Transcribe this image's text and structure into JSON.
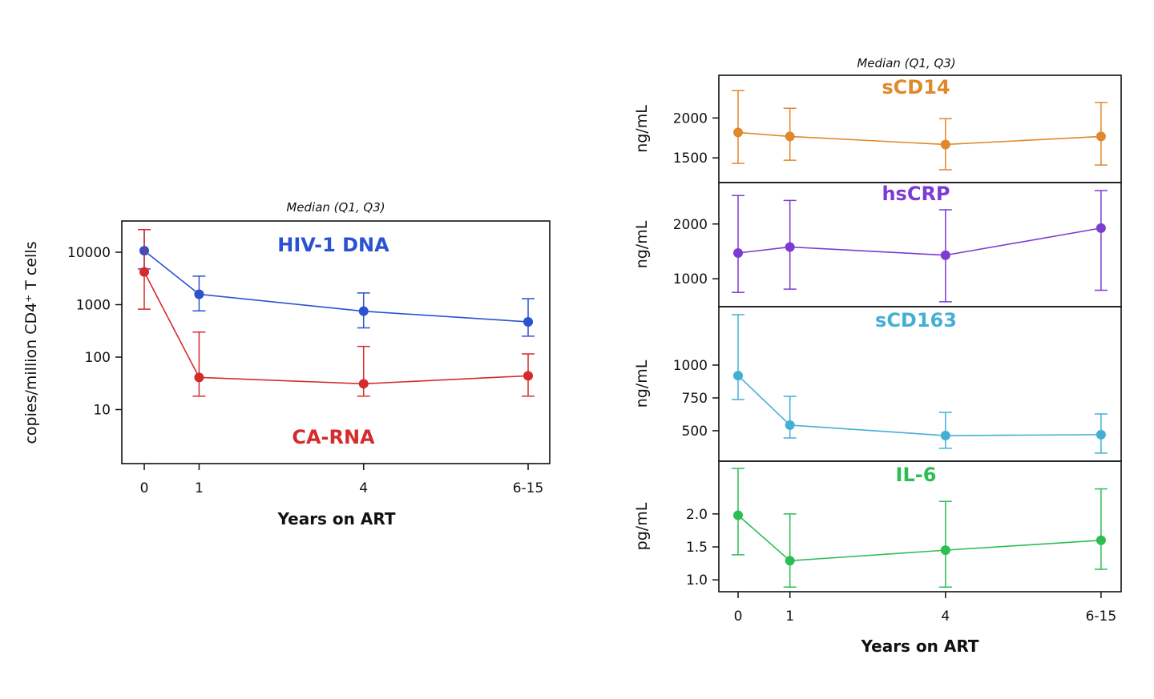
{
  "chart_data": [
    {
      "type": "line",
      "title": "Median (Q1, Q3)",
      "xlabel": "Years on ART",
      "ylabel": "copies/million CD4⁺ T cells",
      "yscale": "log",
      "ylim": [
        0.9,
        40000
      ],
      "x": [
        0,
        1,
        4,
        7
      ],
      "x_tick_labels": [
        "0",
        "1",
        "4",
        "6-15"
      ],
      "y_ticks": [
        10,
        100,
        1000,
        10000
      ],
      "y_tick_labels": [
        "10",
        "100",
        "1000",
        "10000"
      ],
      "grid": false,
      "series": [
        {
          "name": "HIV-1 DNA",
          "color": "#2a52d1",
          "median": [
            10700,
            1580,
            750,
            470
          ],
          "q1": [
            4800,
            760,
            360,
            250
          ],
          "q3": [
            27000,
            3500,
            1670,
            1300
          ]
        },
        {
          "name": "CA-RNA",
          "color": "#d42b2b",
          "median": [
            4200,
            41,
            31,
            44
          ],
          "q1": [
            820,
            18,
            18,
            18
          ],
          "q3": [
            27000,
            300,
            160,
            115
          ]
        }
      ]
    },
    {
      "type": "line",
      "title": "Median (Q1, Q3)",
      "xlabel": "Years on ART",
      "x": [
        0,
        1,
        4,
        7
      ],
      "x_tick_labels": [
        "0",
        "1",
        "4",
        "6-15"
      ],
      "grid": false,
      "panels": [
        {
          "name": "sCD14",
          "ylabel": "ng/mL",
          "color": "#e0892c",
          "ylim": [
            1190,
            2535
          ],
          "y_ticks": [
            1500,
            2000
          ],
          "y_tick_labels": [
            "1500",
            "2000"
          ],
          "median": [
            1818,
            1768,
            1667,
            1768
          ],
          "q1": [
            1430,
            1470,
            1350,
            1410
          ],
          "q3": [
            2343,
            2121,
            1990,
            2192
          ]
        },
        {
          "name": "hsCRP",
          "ylabel": "ng/mL",
          "color": "#7c3bd1",
          "ylim": [
            490,
            2757
          ],
          "y_ticks": [
            1000,
            2000
          ],
          "y_tick_labels": [
            "1000",
            "2000"
          ],
          "median": [
            1470,
            1580,
            1430,
            1925
          ],
          "q1": [
            750,
            810,
            580,
            790
          ],
          "q3": [
            2520,
            2430,
            2260,
            2610
          ]
        },
        {
          "name": "sCD163",
          "ylabel": "ng/mL",
          "color": "#44afd5",
          "ylim": [
            268,
            1445
          ],
          "y_ticks": [
            500,
            750,
            1000
          ],
          "y_tick_labels": [
            "500",
            "750",
            "1000"
          ],
          "median": [
            920,
            543,
            463,
            470
          ],
          "q1": [
            738,
            445,
            366,
            330
          ],
          "q3": [
            1384,
            762,
            640,
            628
          ]
        },
        {
          "name": "IL-6",
          "ylabel": "pg/mL",
          "color": "#2dbd55",
          "ylim": [
            0.82,
            2.8
          ],
          "y_ticks": [
            1.0,
            1.5,
            2.0
          ],
          "y_tick_labels": [
            "1.0",
            "1.5",
            "2.0"
          ],
          "median": [
            1.98,
            1.29,
            1.45,
            1.6
          ],
          "q1": [
            1.38,
            0.89,
            0.89,
            1.16
          ],
          "q3": [
            2.69,
            2.0,
            2.19,
            2.38
          ]
        }
      ]
    }
  ]
}
